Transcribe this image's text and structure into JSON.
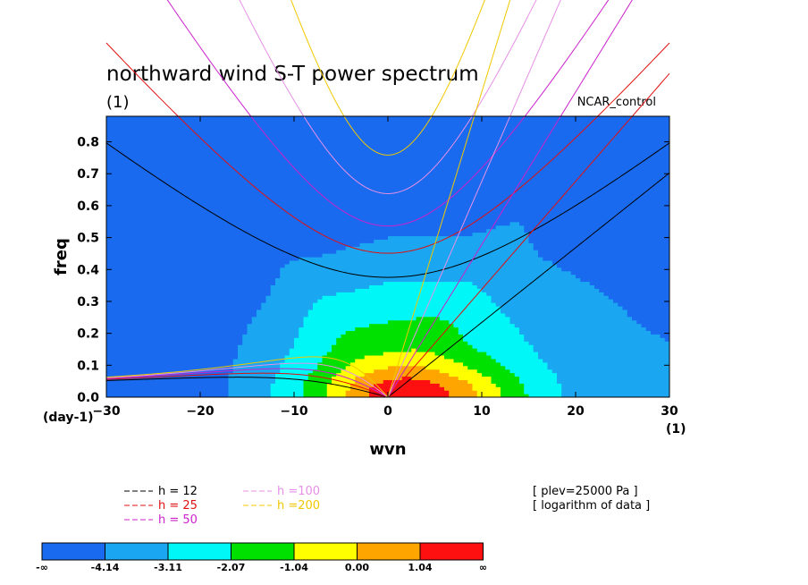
{
  "chart_data": {
    "type": "heatmap",
    "title": "northward wind S-T power spectrum",
    "subtitle": "(1)",
    "model_label": "NCAR_control",
    "xlabel": "wvn",
    "ylabel": "freq",
    "y_unit_label": "(day-1)",
    "x_unit_label": "(1)",
    "xlim": [
      -30,
      30
    ],
    "ylim": [
      0,
      0.88
    ],
    "xticks": [
      -30,
      -20,
      -10,
      0,
      10,
      20,
      30
    ],
    "yticks": [
      0.0,
      0.1,
      0.2,
      0.3,
      0.4,
      0.5,
      0.6,
      0.7,
      0.8
    ],
    "ytick_labels": [
      "0.0",
      "0.1",
      "0.2",
      "0.3",
      "0.4",
      "0.5",
      "0.6",
      "0.7",
      "0.8"
    ],
    "contour_field": {
      "description_of_levels": "logarithm of data",
      "levels": [
        -4.14,
        -3.11,
        -2.07,
        -1.04,
        0.0,
        1.04
      ],
      "level_labels": [
        "-∞",
        "-4.14",
        "-3.11",
        "-2.07",
        "-1.04",
        "0.00",
        "1.04",
        "∞"
      ],
      "colors": [
        "#1a6af0",
        "#1aa6f0",
        "#00f7f7",
        "#00e100",
        "#ffff00",
        "#ffa500",
        "#ff1010"
      ]
    },
    "dispersion_curves": [
      {
        "label": "h = 12",
        "h": 12,
        "color": "#000000"
      },
      {
        "label": "h = 25",
        "h": 25,
        "color": "#e01010"
      },
      {
        "label": "h = 50",
        "h": 50,
        "color": "#cc22cc"
      },
      {
        "label": "h =100",
        "h": 100,
        "color": "#e690e6"
      },
      {
        "label": "h =200",
        "h": 200,
        "color": "#f0c800"
      }
    ],
    "annotations": [
      "[ plev=25000 Pa ]",
      "[ logarithm of data ]"
    ]
  }
}
